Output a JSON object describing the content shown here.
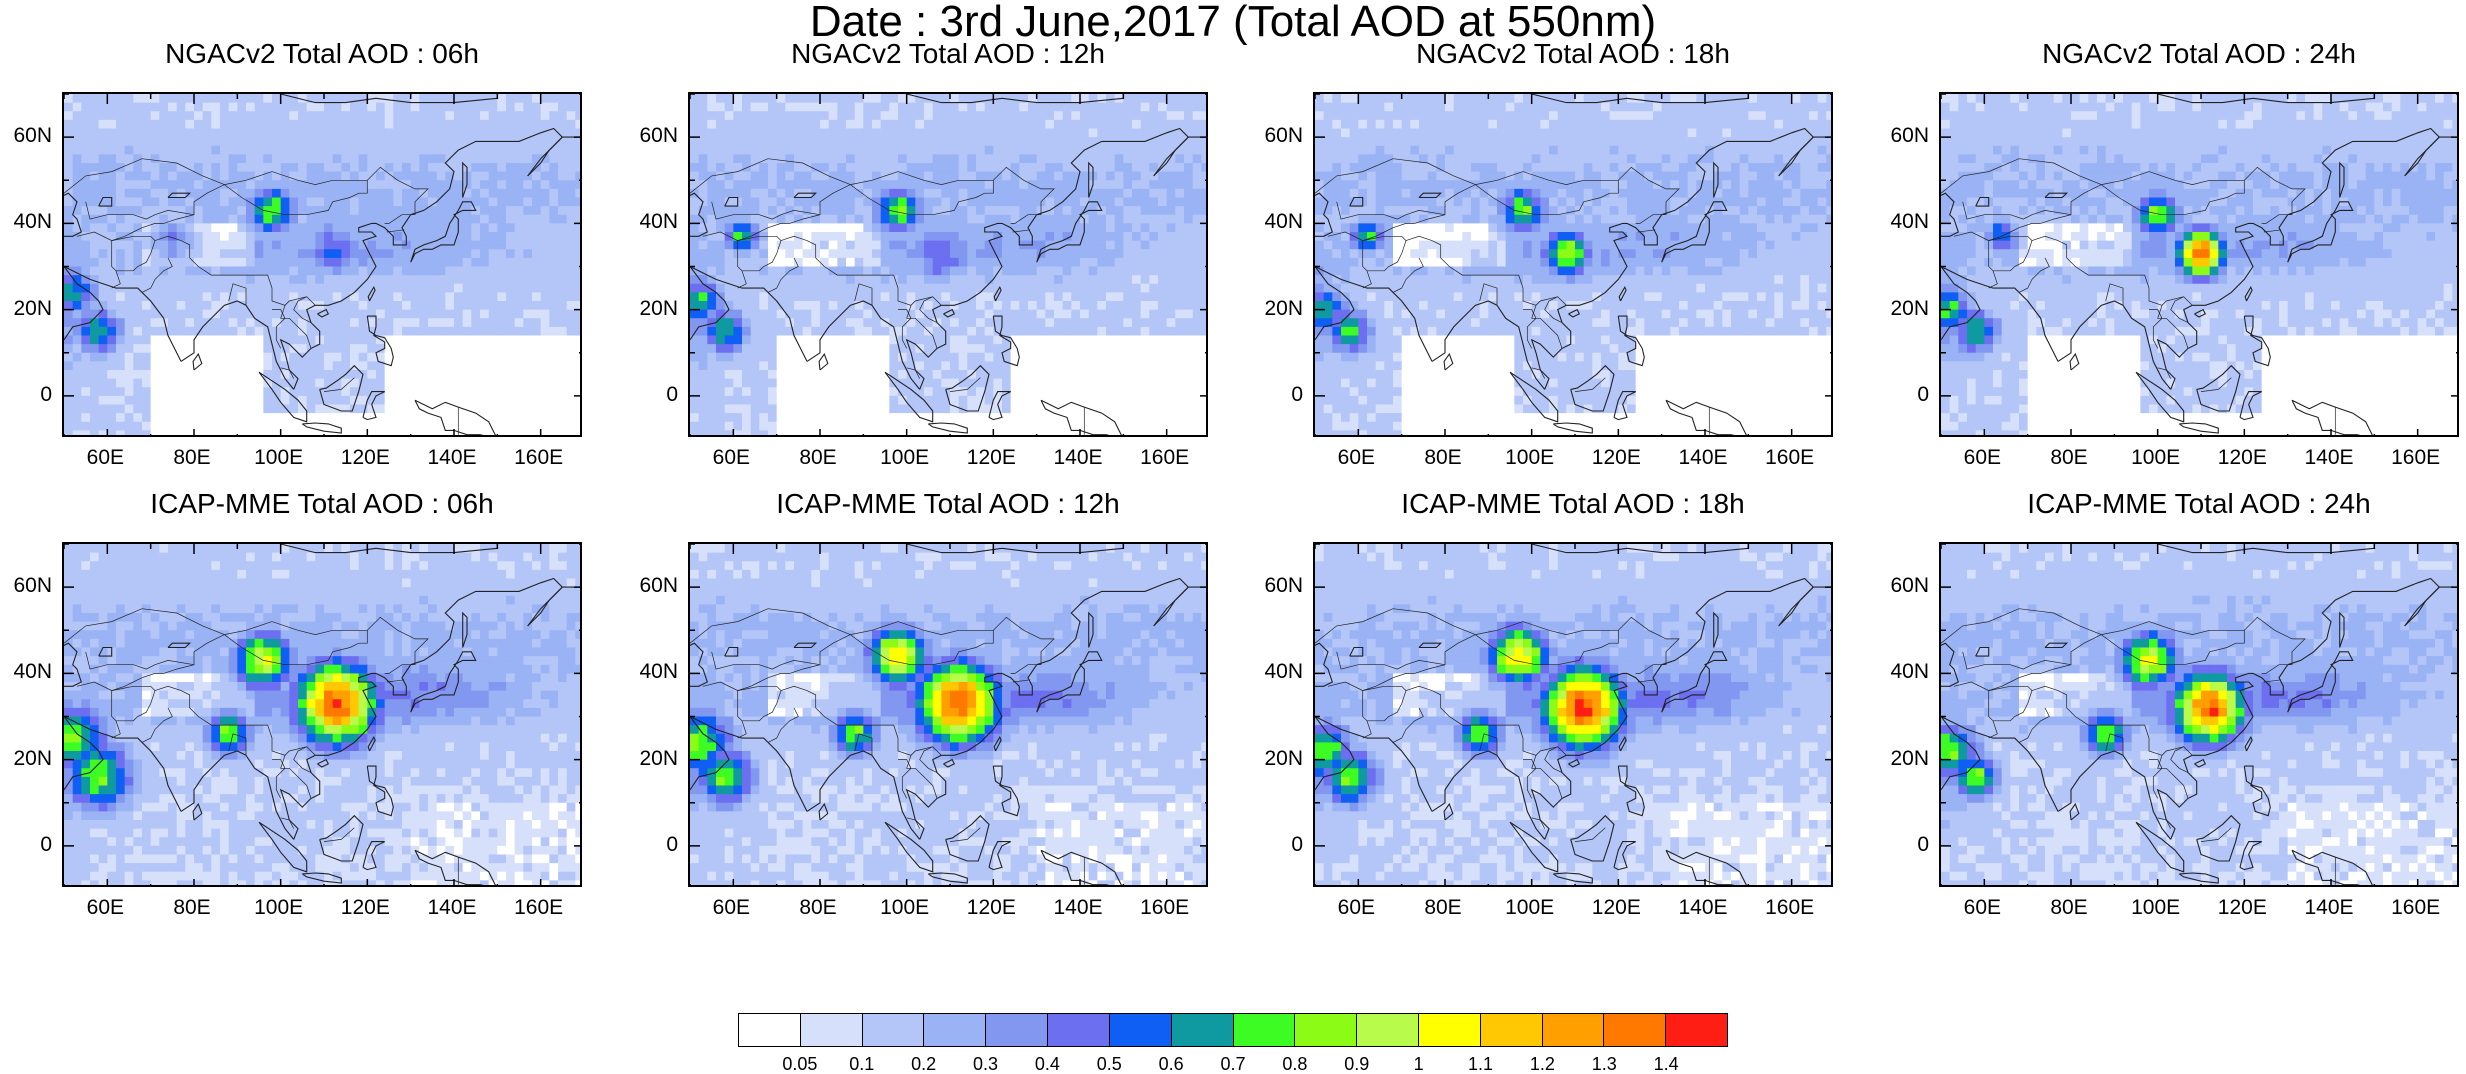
{
  "title": "Date : 3rd June,2017 (Total AOD at 550nm)",
  "panels": [
    {
      "title": "NGACv2 Total AOD : 06h"
    },
    {
      "title": "NGACv2 Total AOD : 12h"
    },
    {
      "title": "NGACv2 Total AOD : 18h"
    },
    {
      "title": "NGACv2 Total AOD : 24h"
    },
    {
      "title": "ICAP-MME Total AOD : 06h"
    },
    {
      "title": "ICAP-MME Total AOD : 12h"
    },
    {
      "title": "ICAP-MME Total AOD : 18h"
    },
    {
      "title": "ICAP-MME Total AOD : 24h"
    }
  ],
  "axes": {
    "lon_ticks": [
      "60E",
      "80E",
      "100E",
      "120E",
      "140E",
      "160E"
    ],
    "lat_ticks": [
      "60N",
      "40N",
      "20N",
      "0"
    ]
  },
  "colorbar": {
    "labels": [
      "0.05",
      "0.1",
      "0.2",
      "0.3",
      "0.4",
      "0.5",
      "0.6",
      "0.7",
      "0.8",
      "0.9",
      "1",
      "1.1",
      "1.2",
      "1.3",
      "1.4"
    ],
    "colors": [
      "#ffffff",
      "#d7e0fa",
      "#b4c6f8",
      "#9ab3f5",
      "#8298f0",
      "#6b6ff0",
      "#0f5ff5",
      "#0e9aa0",
      "#3dfc24",
      "#8cfc16",
      "#b9fb4a",
      "#ffff00",
      "#ffc800",
      "#ffa000",
      "#ff7800",
      "#ff1e14"
    ]
  },
  "hotspots": [
    [
      {
        "lon": 98,
        "lat": 43,
        "v": 0.8,
        "r": 4
      },
      {
        "lon": 112,
        "lat": 34,
        "v": 0.5,
        "r": 5
      },
      {
        "lon": 52,
        "lat": 24,
        "v": 0.7,
        "r": 4
      },
      {
        "lon": 58,
        "lat": 15,
        "v": 0.7,
        "r": 4
      },
      {
        "lon": 75,
        "lat": 36,
        "v": 0.4,
        "r": 4
      }
    ],
    [
      {
        "lon": 98,
        "lat": 43,
        "v": 0.8,
        "r": 4
      },
      {
        "lon": 108,
        "lat": 33,
        "v": 0.5,
        "r": 5
      },
      {
        "lon": 52,
        "lat": 22,
        "v": 0.7,
        "r": 4
      },
      {
        "lon": 58,
        "lat": 15,
        "v": 0.7,
        "r": 4
      },
      {
        "lon": 62,
        "lat": 37,
        "v": 0.7,
        "r": 3
      }
    ],
    [
      {
        "lon": 98,
        "lat": 43,
        "v": 0.8,
        "r": 4
      },
      {
        "lon": 108,
        "lat": 33,
        "v": 0.9,
        "r": 4
      },
      {
        "lon": 52,
        "lat": 20,
        "v": 0.7,
        "r": 4
      },
      {
        "lon": 58,
        "lat": 15,
        "v": 0.7,
        "r": 4
      },
      {
        "lon": 62,
        "lat": 37,
        "v": 0.7,
        "r": 3
      }
    ],
    [
      {
        "lon": 100,
        "lat": 42,
        "v": 0.8,
        "r": 4
      },
      {
        "lon": 110,
        "lat": 33,
        "v": 1.4,
        "r": 4
      },
      {
        "lon": 52,
        "lat": 20,
        "v": 0.7,
        "r": 4
      },
      {
        "lon": 58,
        "lat": 15,
        "v": 0.7,
        "r": 4
      },
      {
        "lon": 64,
        "lat": 37,
        "v": 0.6,
        "r": 3
      }
    ],
    [
      {
        "lon": 96,
        "lat": 43,
        "v": 1.0,
        "r": 5
      },
      {
        "lon": 113,
        "lat": 33,
        "v": 1.4,
        "r": 7
      },
      {
        "lon": 52,
        "lat": 25,
        "v": 0.8,
        "r": 6
      },
      {
        "lon": 58,
        "lat": 16,
        "v": 0.8,
        "r": 6
      },
      {
        "lon": 88,
        "lat": 26,
        "v": 0.8,
        "r": 4
      }
    ],
    [
      {
        "lon": 98,
        "lat": 44,
        "v": 1.1,
        "r": 5
      },
      {
        "lon": 112,
        "lat": 33,
        "v": 1.4,
        "r": 7
      },
      {
        "lon": 52,
        "lat": 24,
        "v": 0.8,
        "r": 6
      },
      {
        "lon": 58,
        "lat": 16,
        "v": 0.8,
        "r": 5
      },
      {
        "lon": 88,
        "lat": 26,
        "v": 0.8,
        "r": 4
      }
    ],
    [
      {
        "lon": 97,
        "lat": 44,
        "v": 1.1,
        "r": 5
      },
      {
        "lon": 112,
        "lat": 32,
        "v": 1.4,
        "r": 7
      },
      {
        "lon": 52,
        "lat": 22,
        "v": 0.8,
        "r": 5
      },
      {
        "lon": 58,
        "lat": 16,
        "v": 0.8,
        "r": 5
      },
      {
        "lon": 88,
        "lat": 26,
        "v": 0.8,
        "r": 4
      }
    ],
    [
      {
        "lon": 98,
        "lat": 43,
        "v": 1.0,
        "r": 5
      },
      {
        "lon": 112,
        "lat": 32,
        "v": 1.4,
        "r": 6
      },
      {
        "lon": 52,
        "lat": 22,
        "v": 0.8,
        "r": 5
      },
      {
        "lon": 58,
        "lat": 16,
        "v": 0.8,
        "r": 4
      },
      {
        "lon": 88,
        "lat": 26,
        "v": 0.8,
        "r": 4
      }
    ]
  ]
}
